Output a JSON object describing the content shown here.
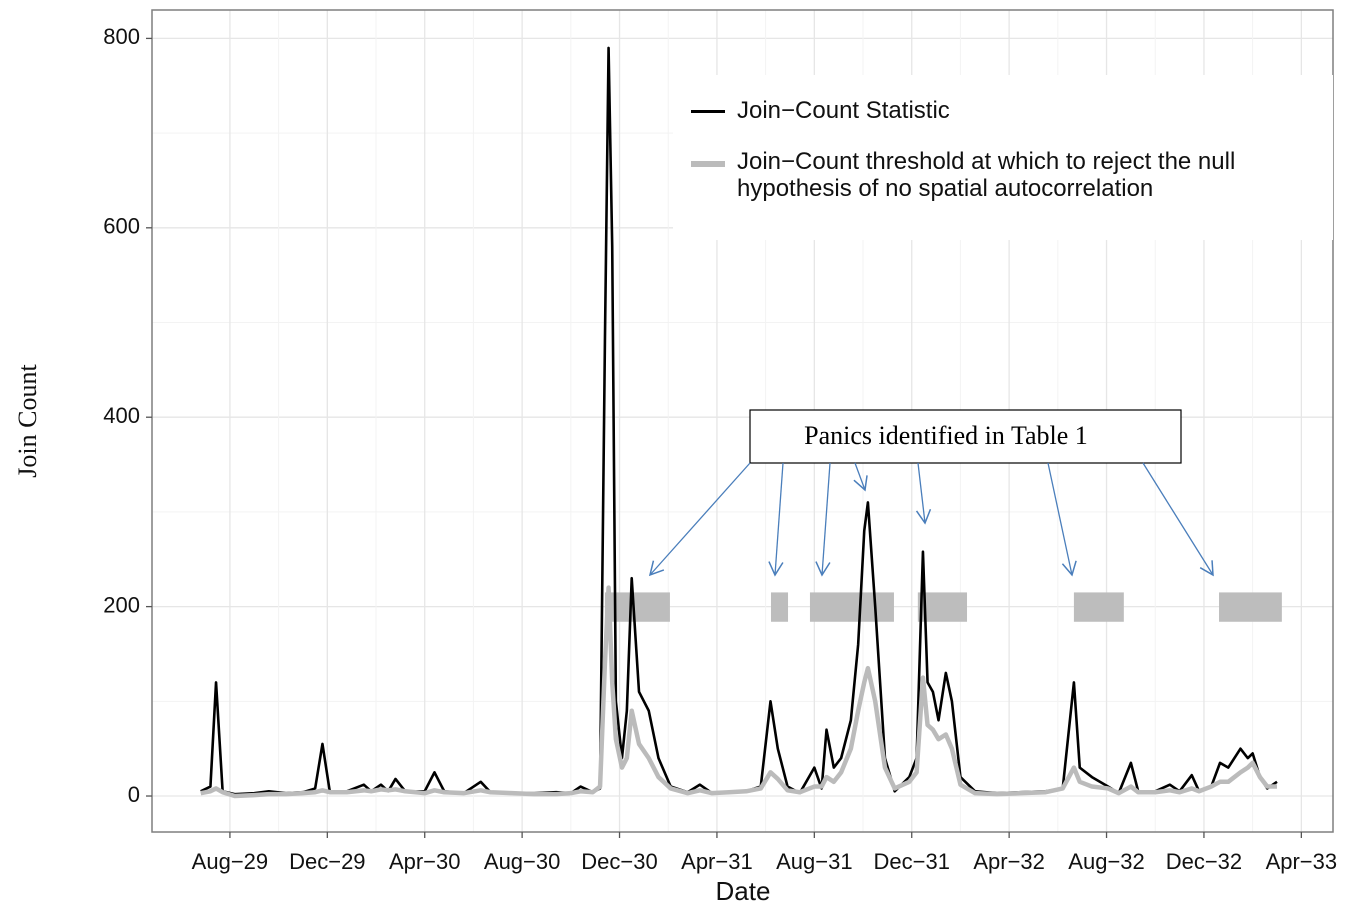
{
  "chart_data": {
    "type": "line",
    "x_label": "Date",
    "y_label": "Join Count",
    "annotation": "Panics identified in Table 1",
    "legend": "top-right",
    "grid": true,
    "xlim": [
      3.8,
      52.3
    ],
    "ylim": [
      -38,
      830
    ],
    "yticks": [
      0,
      200,
      400,
      600,
      800
    ],
    "xticks": [
      {
        "value": 7,
        "label": "Aug−29"
      },
      {
        "value": 11,
        "label": "Dec−29"
      },
      {
        "value": 15,
        "label": "Apr−30"
      },
      {
        "value": 19,
        "label": "Aug−30"
      },
      {
        "value": 23,
        "label": "Dec−30"
      },
      {
        "value": 27,
        "label": "Apr−31"
      },
      {
        "value": 31,
        "label": "Aug−31"
      },
      {
        "value": 35,
        "label": "Dec−31"
      },
      {
        "value": 39,
        "label": "Apr−32"
      },
      {
        "value": 43,
        "label": "Aug−32"
      },
      {
        "value": 47,
        "label": "Dec−32"
      },
      {
        "value": 51,
        "label": "Apr−33"
      }
    ],
    "x": [
      5.8,
      6.2,
      6.43,
      6.7,
      7.2,
      8.0,
      8.6,
      9.3,
      10.0,
      10.5,
      10.8,
      11.1,
      11.8,
      12.5,
      12.8,
      13.2,
      13.5,
      13.8,
      14.2,
      15.0,
      15.4,
      15.8,
      16.6,
      17.3,
      17.7,
      18.6,
      19.5,
      20.4,
      21.0,
      21.4,
      21.9,
      22.2,
      22.4,
      22.55,
      22.7,
      22.85,
      23.1,
      23.3,
      23.5,
      23.8,
      24.2,
      24.6,
      25.1,
      25.8,
      26.3,
      26.8,
      27.5,
      28.2,
      28.8,
      29.2,
      29.5,
      29.9,
      30.4,
      31.0,
      31.3,
      31.5,
      31.8,
      32.1,
      32.5,
      32.8,
      33.05,
      33.2,
      33.5,
      33.9,
      34.3,
      34.9,
      35.2,
      35.46,
      35.65,
      35.87,
      36.1,
      36.4,
      36.65,
      37.0,
      37.6,
      38.5,
      39.5,
      40.5,
      41.2,
      41.66,
      41.9,
      42.4,
      43.06,
      43.5,
      44.0,
      44.3,
      45.0,
      45.6,
      46.0,
      46.5,
      46.8,
      47.3,
      47.66,
      48.0,
      48.5,
      48.8,
      49.0,
      49.3,
      49.6,
      50.0
    ],
    "series": [
      {
        "name": "Join−Count Statistic",
        "color": "#000000",
        "values": [
          5,
          10,
          120,
          5,
          2,
          3,
          5,
          3,
          4,
          8,
          55,
          5,
          5,
          12,
          5,
          12,
          5,
          18,
          5,
          5,
          25,
          5,
          3,
          15,
          4,
          3,
          3,
          4,
          3,
          10,
          4,
          8,
          480,
          790,
          580,
          100,
          40,
          90,
          230,
          110,
          90,
          40,
          10,
          4,
          12,
          3,
          4,
          5,
          10,
          100,
          50,
          10,
          3,
          30,
          8,
          70,
          30,
          40,
          80,
          160,
          280,
          310,
          200,
          40,
          5,
          20,
          40,
          258,
          120,
          110,
          80,
          130,
          100,
          20,
          5,
          3,
          4,
          5,
          8,
          120,
          30,
          20,
          10,
          3,
          35,
          5,
          5,
          12,
          5,
          22,
          5,
          10,
          35,
          30,
          50,
          40,
          45,
          20,
          8,
          15
        ]
      },
      {
        "name": "Join−Count threshold at which to reject the null hypothesis of no spatial autocorrelation",
        "color": "#bbbbbb",
        "values": [
          3,
          5,
          8,
          4,
          0,
          1,
          2,
          2,
          3,
          4,
          6,
          4,
          4,
          6,
          5,
          7,
          6,
          7,
          5,
          3,
          6,
          4,
          3,
          6,
          4,
          3,
          2,
          2,
          3,
          5,
          4,
          10,
          140,
          220,
          120,
          60,
          30,
          40,
          90,
          55,
          40,
          20,
          8,
          3,
          6,
          3,
          4,
          5,
          8,
          25,
          18,
          6,
          4,
          10,
          10,
          20,
          15,
          25,
          50,
          90,
          120,
          135,
          100,
          30,
          8,
          15,
          25,
          125,
          75,
          70,
          60,
          65,
          50,
          12,
          3,
          2,
          3,
          4,
          8,
          30,
          15,
          10,
          8,
          3,
          10,
          4,
          4,
          6,
          4,
          8,
          5,
          10,
          15,
          15,
          25,
          30,
          35,
          20,
          10,
          10
        ]
      }
    ],
    "shaded_periods": [
      [
        22.4,
        25.07
      ],
      [
        29.22,
        29.92
      ],
      [
        30.82,
        34.27
      ],
      [
        35.25,
        37.27
      ],
      [
        41.66,
        43.71
      ],
      [
        47.62,
        50.2
      ]
    ],
    "shaded_color": "#bdbdbd",
    "shaded_ylim": [
      184,
      215
    ]
  }
}
